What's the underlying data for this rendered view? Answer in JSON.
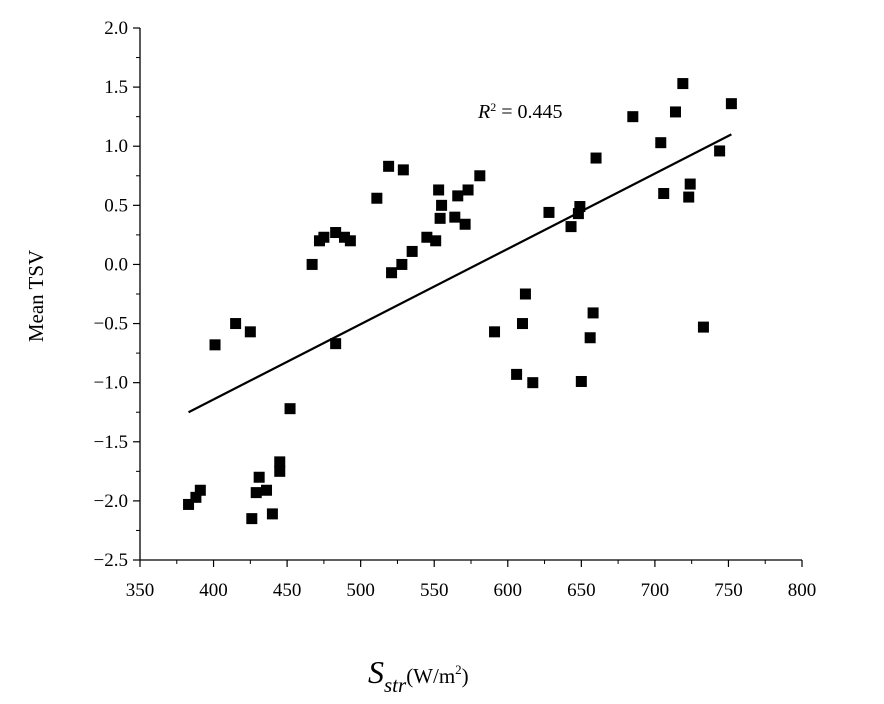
{
  "chart_data": {
    "type": "scatter",
    "xlabel_main": "S",
    "xlabel_sub": "str",
    "xlabel_unit_pre": "(W/m",
    "xlabel_unit_sup": "2",
    "xlabel_unit_post": ")",
    "ylabel": "Mean TSV",
    "xlim": [
      350,
      800
    ],
    "ylim": [
      -2.5,
      2.0
    ],
    "xticks": [
      "350",
      "400",
      "450",
      "500",
      "550",
      "600",
      "650",
      "700",
      "750",
      "800"
    ],
    "yticks": [
      "2.0",
      "1.5",
      "1.0",
      "0.5",
      "0.0",
      "−0.5",
      "−1.0",
      "−1.5",
      "−2.0",
      "−2.5"
    ],
    "marker_color": "#000000",
    "annotation": {
      "prefix": "R",
      "sup": "2",
      "suffix": " = 0.445"
    },
    "trend_line": {
      "x": [
        383,
        752
      ],
      "y": [
        -1.25,
        1.1
      ]
    },
    "points": [
      {
        "x": 383,
        "y": -2.03
      },
      {
        "x": 388,
        "y": -1.97
      },
      {
        "x": 391,
        "y": -1.91
      },
      {
        "x": 401,
        "y": -0.68
      },
      {
        "x": 415,
        "y": -0.5
      },
      {
        "x": 425,
        "y": -0.57
      },
      {
        "x": 426,
        "y": -2.15
      },
      {
        "x": 429,
        "y": -1.93
      },
      {
        "x": 431,
        "y": -1.8
      },
      {
        "x": 436,
        "y": -1.91
      },
      {
        "x": 440,
        "y": -2.11
      },
      {
        "x": 445,
        "y": -1.67
      },
      {
        "x": 445,
        "y": -1.75
      },
      {
        "x": 452,
        "y": -1.22
      },
      {
        "x": 467,
        "y": 0.0
      },
      {
        "x": 472,
        "y": 0.2
      },
      {
        "x": 475,
        "y": 0.23
      },
      {
        "x": 483,
        "y": 0.27
      },
      {
        "x": 483,
        "y": -0.67
      },
      {
        "x": 489,
        "y": 0.23
      },
      {
        "x": 493,
        "y": 0.2
      },
      {
        "x": 511,
        "y": 0.56
      },
      {
        "x": 519,
        "y": 0.83
      },
      {
        "x": 521,
        "y": -0.07
      },
      {
        "x": 528,
        "y": 0.0
      },
      {
        "x": 529,
        "y": 0.8
      },
      {
        "x": 535,
        "y": 0.11
      },
      {
        "x": 545,
        "y": 0.23
      },
      {
        "x": 551,
        "y": 0.2
      },
      {
        "x": 553,
        "y": 0.63
      },
      {
        "x": 554,
        "y": 0.39
      },
      {
        "x": 555,
        "y": 0.5
      },
      {
        "x": 564,
        "y": 0.4
      },
      {
        "x": 566,
        "y": 0.58
      },
      {
        "x": 571,
        "y": 0.34
      },
      {
        "x": 573,
        "y": 0.63
      },
      {
        "x": 581,
        "y": 0.75
      },
      {
        "x": 591,
        "y": -0.57
      },
      {
        "x": 606,
        "y": -0.93
      },
      {
        "x": 610,
        "y": -0.5
      },
      {
        "x": 612,
        "y": -0.25
      },
      {
        "x": 617,
        "y": -1.0
      },
      {
        "x": 628,
        "y": 0.44
      },
      {
        "x": 643,
        "y": 0.32
      },
      {
        "x": 648,
        "y": 0.43
      },
      {
        "x": 649,
        "y": 0.49
      },
      {
        "x": 650,
        "y": -0.99
      },
      {
        "x": 656,
        "y": -0.62
      },
      {
        "x": 658,
        "y": -0.41
      },
      {
        "x": 660,
        "y": 0.9
      },
      {
        "x": 685,
        "y": 1.25
      },
      {
        "x": 704,
        "y": 1.03
      },
      {
        "x": 706,
        "y": 0.6
      },
      {
        "x": 714,
        "y": 1.29
      },
      {
        "x": 719,
        "y": 1.53
      },
      {
        "x": 723,
        "y": 0.57
      },
      {
        "x": 724,
        "y": 0.68
      },
      {
        "x": 733,
        "y": -0.53
      },
      {
        "x": 744,
        "y": 0.96
      },
      {
        "x": 752,
        "y": 1.36
      }
    ]
  }
}
